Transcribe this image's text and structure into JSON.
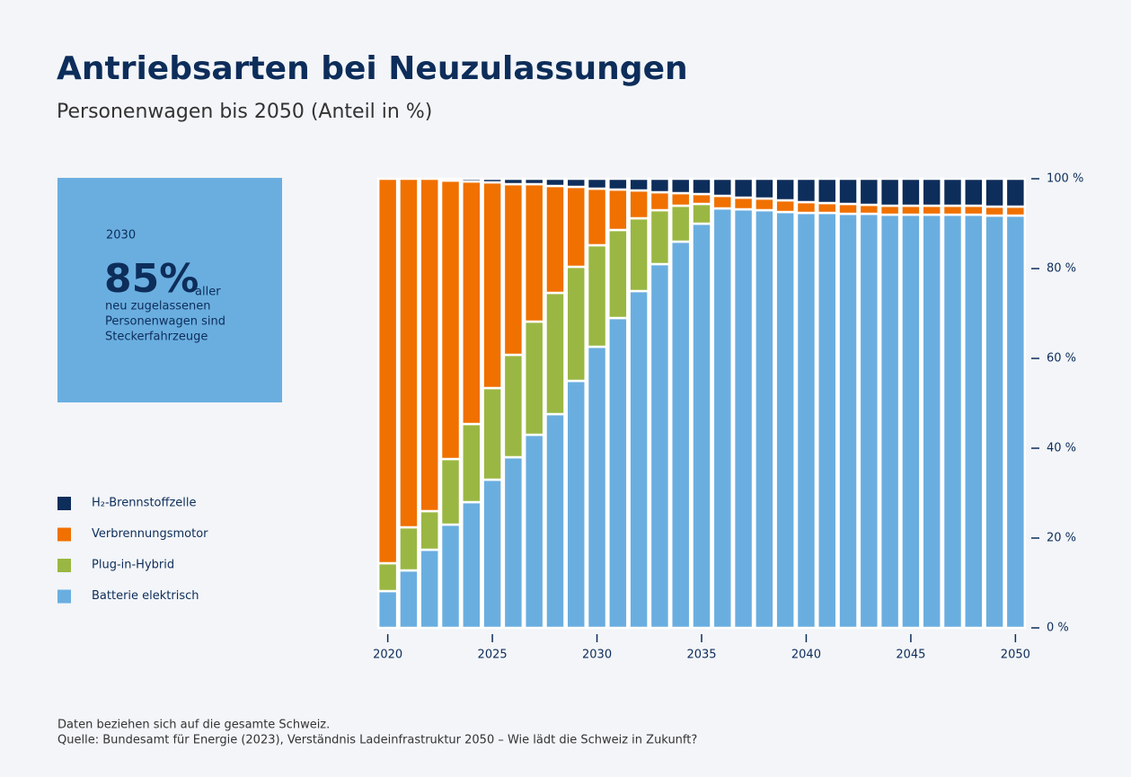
{
  "chart_data": {
    "type": "stacked_bar",
    "title": "Antriebsarten bei Neuzulassungen",
    "subtitle": "Personenwagen bis 2050 (Anteil in %)",
    "categories": [
      "2020",
      null,
      null,
      null,
      null,
      "2025",
      null,
      null,
      null,
      null,
      "2030",
      null,
      null,
      null,
      null,
      "2035",
      null,
      null,
      null,
      null,
      "2040",
      null,
      null,
      null,
      null,
      "2045",
      null,
      null,
      null,
      null,
      "2050"
    ],
    "series": [
      {
        "name": "Batterie elektrisch",
        "color": "#6aaee0",
        "values": [
          8.2,
          12.8,
          17.4,
          23,
          28,
          33,
          38,
          43,
          47.6,
          55,
          62.6,
          69,
          75,
          81,
          86,
          90,
          93.4,
          93.2,
          93,
          92.6,
          92.4,
          92.4,
          92.2,
          92.2,
          92,
          92,
          92,
          92,
          92,
          91.8,
          91.8
        ]
      },
      {
        "name": "Plug-in-Hybrid",
        "color": "#9ab743",
        "values": [
          6.2,
          9.6,
          8.6,
          14.6,
          17.4,
          20.4,
          22.8,
          25.2,
          27,
          25.4,
          22.6,
          19.6,
          16.2,
          12,
          8,
          4.4,
          0,
          0,
          0,
          0,
          0,
          0,
          0,
          0,
          0,
          0,
          0,
          0,
          0,
          0,
          0
        ]
      },
      {
        "name": "Verbrennungsmotor",
        "color": "#f07000",
        "values": [
          85.6,
          77.6,
          74,
          62,
          54,
          45.8,
          38,
          30.6,
          23.8,
          17.8,
          12.6,
          9,
          6.2,
          4,
          2.8,
          2.2,
          2.8,
          2.6,
          2.6,
          2.6,
          2.4,
          2.2,
          2.2,
          2,
          2,
          2,
          2,
          2,
          2,
          2,
          2
        ]
      },
      {
        "name": "H₂-Brennstoffzelle",
        "color": "#0d2d5a",
        "values": [
          0,
          0,
          0,
          0.4,
          0.6,
          0.8,
          1.2,
          1.2,
          1.6,
          1.8,
          2.2,
          2.4,
          2.6,
          3,
          3.2,
          3.4,
          3.8,
          4.2,
          4.4,
          4.8,
          5.2,
          5.4,
          5.6,
          5.8,
          6,
          6,
          6,
          6,
          6,
          6.2,
          6.2
        ]
      }
    ],
    "ylim": [
      0,
      100
    ],
    "yticks": [
      {
        "value": 0,
        "label": "0 %"
      },
      {
        "value": 20,
        "label": "20 %"
      },
      {
        "value": 40,
        "label": "40 %"
      },
      {
        "value": 60,
        "label": "60 %"
      },
      {
        "value": 80,
        "label": "80 %"
      },
      {
        "value": 100,
        "label": "100 %"
      }
    ],
    "callout": {
      "year": "2030",
      "value": "85%",
      "text1": "aller",
      "text2": "neu zugelassenen",
      "text3": "Personenwagen sind",
      "text4": "Steckerfahrzeuge"
    },
    "notes": [
      "Daten beziehen sich auf die gesamte Schweiz.",
      "Quelle: Bundesamt für Energie (2023), Verständnis Ladeinfrastruktur 2050 – Wie lädt die Schweiz in Zukunft?"
    ]
  }
}
